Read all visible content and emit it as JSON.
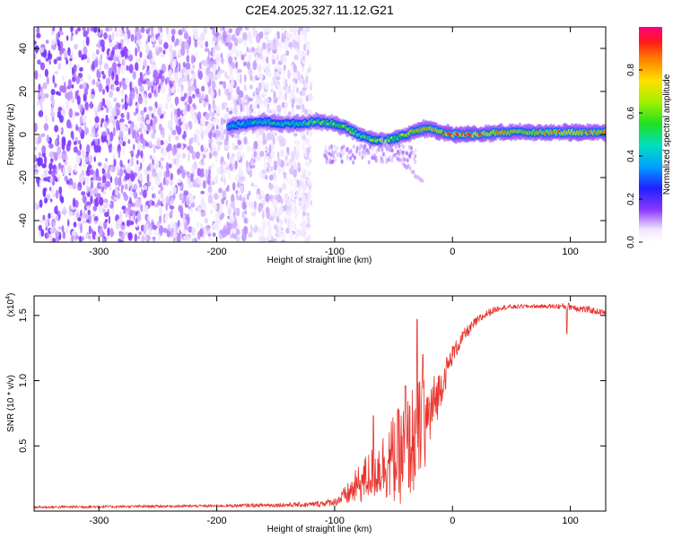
{
  "title": "C2E4.2025.327.11.12.G21",
  "chart_data": [
    {
      "type": "heatmap",
      "xlabel": "Height of straight line (km)",
      "ylabel": "Frequency (Hz)",
      "xlim": [
        -355,
        130
      ],
      "ylim": [
        -50,
        50
      ],
      "xticks": [
        -300,
        -200,
        -100,
        0,
        100
      ],
      "yticks": [
        -40,
        -20,
        0,
        20,
        40
      ],
      "noise_region_x": [
        -355,
        -120
      ],
      "ridge": {
        "x": [
          -190,
          -175,
          -160,
          -145,
          -130,
          -115,
          -100,
          -90,
          -80,
          -70,
          -60,
          -50,
          -40,
          -30,
          -20,
          -10,
          0,
          20,
          40,
          60,
          80,
          100,
          130
        ],
        "y": [
          4,
          5,
          6,
          5,
          5,
          6,
          5,
          3,
          0,
          -2,
          -3,
          -2,
          0,
          2,
          3,
          1,
          0,
          0,
          1,
          1,
          1,
          1,
          1
        ],
        "amplitude": [
          0.5,
          0.45,
          0.55,
          0.5,
          0.55,
          0.65,
          0.7,
          0.75,
          0.6,
          0.65,
          0.7,
          0.65,
          0.75,
          0.85,
          0.85,
          0.9,
          0.95,
          0.95,
          0.85,
          0.8,
          0.85,
          0.95,
          0.85
        ]
      },
      "colorbar": {
        "label": "Normalized spectral amplitude",
        "ticks": [
          0.0,
          0.2,
          0.4,
          0.6,
          0.8
        ],
        "range": [
          0,
          1
        ]
      }
    },
    {
      "type": "line",
      "xlabel": "Height of straight line (km)",
      "ylabel": "SNR (10 * v/v)",
      "y_multiplier": "(x10",
      "y_multiplier_exp": "4",
      "y_multiplier_close": ")",
      "xlim": [
        -355,
        130
      ],
      "ylim": [
        0,
        1.65
      ],
      "xticks": [
        -300,
        -200,
        -100,
        0,
        100
      ],
      "yticks": [
        0.5,
        1.0,
        1.5
      ],
      "ytick_labels": [
        "0.5",
        "1.0",
        "1.5"
      ],
      "color": "#e8332c",
      "series": [
        {
          "x": [
            -355,
            -200,
            -120,
            -100,
            -90,
            -80,
            -70,
            -60,
            -50,
            -40,
            -30,
            -20,
            -10,
            0,
            10,
            20,
            30,
            40,
            60,
            80,
            100,
            110,
            130
          ],
          "y": [
            0.03,
            0.04,
            0.05,
            0.07,
            0.12,
            0.2,
            0.28,
            0.35,
            0.4,
            0.45,
            0.6,
            0.72,
            0.95,
            1.2,
            1.35,
            1.45,
            1.52,
            1.56,
            1.57,
            1.57,
            1.57,
            1.55,
            1.52
          ],
          "noise": [
            0.01,
            0.01,
            0.02,
            0.03,
            0.08,
            0.15,
            0.2,
            0.25,
            0.35,
            0.4,
            0.45,
            0.3,
            0.15,
            0.08,
            0.05,
            0.04,
            0.03,
            0.02,
            0.015,
            0.015,
            0.03,
            0.03,
            0.02
          ]
        }
      ],
      "peaks": [
        {
          "x": -40,
          "y": 0.96
        },
        {
          "x": -30,
          "y": 1.47
        },
        {
          "x": -25,
          "y": 1.2
        },
        {
          "x": -67,
          "y": 0.73
        },
        {
          "x": 97,
          "y": 1.36
        }
      ]
    }
  ]
}
